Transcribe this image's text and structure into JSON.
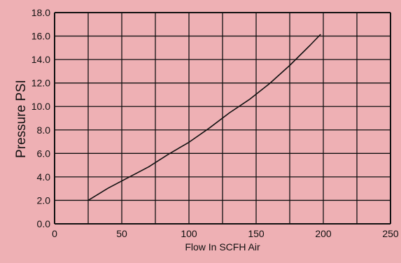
{
  "colors": {
    "background": "#eeb0b4",
    "grid": "#111111",
    "line": "#111111"
  },
  "chart_data": {
    "type": "line",
    "title": "",
    "xlabel": "Flow In SCFH Air",
    "ylabel": "Pressure PSI",
    "xlim": [
      0,
      250
    ],
    "ylim": [
      0,
      18
    ],
    "x_ticks": [
      0,
      25,
      50,
      75,
      100,
      125,
      150,
      175,
      200,
      225,
      250
    ],
    "x_tick_labels": [
      "0",
      "50",
      "100",
      "150",
      "200",
      "250"
    ],
    "x_tick_label_values": [
      0,
      50,
      100,
      150,
      200,
      250
    ],
    "y_ticks": [
      0,
      2,
      4,
      6,
      8,
      10,
      12,
      14,
      16,
      18
    ],
    "y_tick_labels": [
      "0.0",
      "2.0",
      "4.0",
      "6.0",
      "8.0",
      "10.0",
      "12.0",
      "14.0",
      "16.0",
      "18.0"
    ],
    "grid": true,
    "legend": "none",
    "series": [
      {
        "x": [
          25,
          40,
          55,
          70,
          85,
          100,
          115,
          130,
          145,
          160,
          175,
          190,
          198
        ],
        "y": [
          2.0,
          3.05,
          3.95,
          4.85,
          5.95,
          6.95,
          8.15,
          9.45,
          10.6,
          11.95,
          13.5,
          15.2,
          16.15
        ]
      }
    ]
  }
}
